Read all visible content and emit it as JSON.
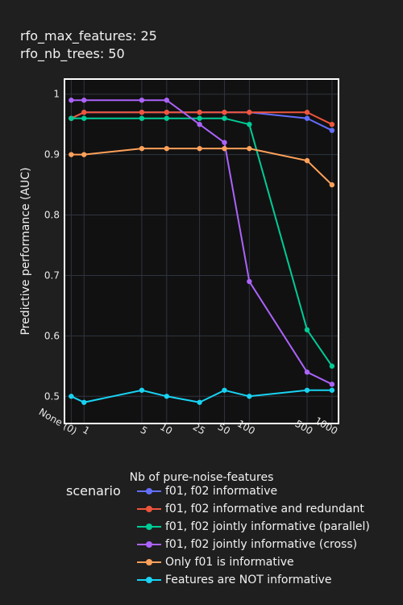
{
  "header": {
    "line1": "rfo_max_features: 25",
    "line2": "rfo_nb_trees: 50"
  },
  "chart_data": {
    "type": "line",
    "x_scale": "log",
    "x_ticks": [
      {
        "value": 0.7,
        "label": "None (0)"
      },
      {
        "value": 1,
        "label": "1"
      },
      {
        "value": 5,
        "label": "5"
      },
      {
        "value": 10,
        "label": "10"
      },
      {
        "value": 25,
        "label": "25"
      },
      {
        "value": 50,
        "label": "50"
      },
      {
        "value": 100,
        "label": "100"
      },
      {
        "value": 500,
        "label": "500"
      },
      {
        "value": 1000,
        "label": "1000"
      }
    ],
    "y_ticks": [
      0.5,
      0.6,
      0.7,
      0.8,
      0.9,
      1
    ],
    "y_tick_labels": [
      "0.5",
      "0.6",
      "0.7",
      "0.8",
      "0.9",
      "1"
    ],
    "ylim": [
      0.455,
      1.025
    ],
    "xlabel": "Nb of pure-noise-features",
    "ylabel": "Predictive performance (AUC)",
    "legend_title": "scenario",
    "legend_position": "bottom",
    "grid": true,
    "x": [
      0.7,
      1,
      5,
      10,
      25,
      50,
      100,
      500,
      1000
    ],
    "series": [
      {
        "name": "f01, f02 informative",
        "color": "#636efa",
        "values": [
          0.96,
          0.97,
          0.97,
          0.97,
          0.97,
          0.97,
          0.97,
          0.96,
          0.94
        ]
      },
      {
        "name": "f01, f02 informative and redundant",
        "color": "#ef553b",
        "values": [
          0.96,
          0.97,
          0.97,
          0.97,
          0.97,
          0.97,
          0.97,
          0.97,
          0.95
        ]
      },
      {
        "name": "f01, f02 jointly informative (parallel)",
        "color": "#00cc96",
        "values": [
          0.96,
          0.96,
          0.96,
          0.96,
          0.96,
          0.96,
          0.95,
          0.61,
          0.55
        ]
      },
      {
        "name": "f01, f02 jointly informative (cross)",
        "color": "#ab63fa",
        "values": [
          0.99,
          0.99,
          0.99,
          0.99,
          0.95,
          0.92,
          0.69,
          0.54,
          0.52
        ]
      },
      {
        "name": "Only f01 is informative",
        "color": "#ffa15a",
        "values": [
          0.9,
          0.9,
          0.91,
          0.91,
          0.91,
          0.91,
          0.91,
          0.89,
          0.85
        ]
      },
      {
        "name": "Features are NOT informative",
        "color": "#19d3f3",
        "values": [
          0.5,
          0.49,
          0.51,
          0.5,
          0.49,
          0.51,
          0.5,
          0.51,
          0.51
        ]
      }
    ]
  }
}
